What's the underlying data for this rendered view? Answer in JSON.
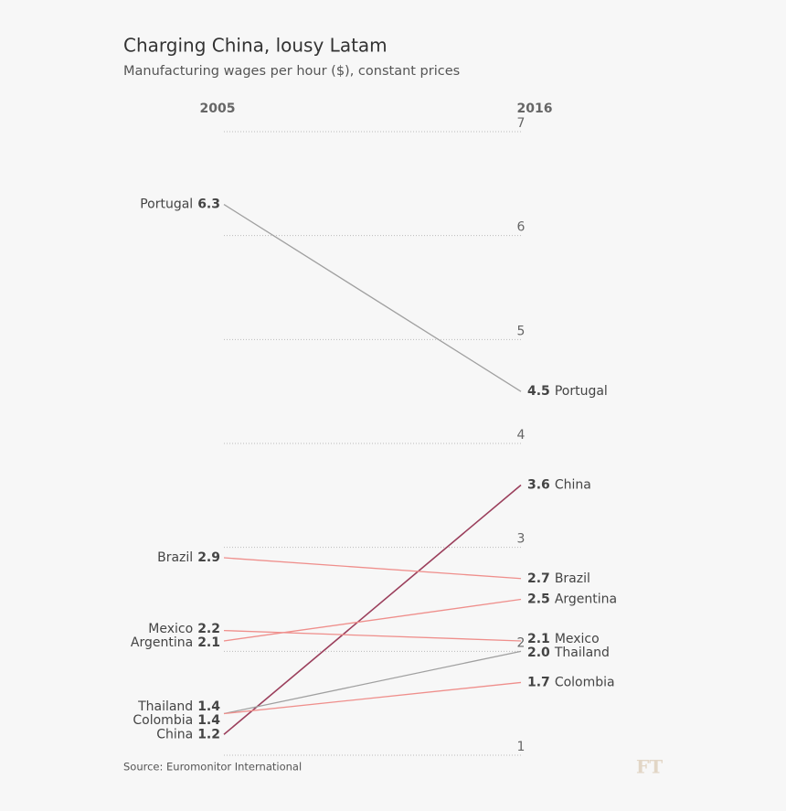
{
  "chart_data": {
    "type": "slope",
    "title": "Charging China, lousy Latam",
    "subtitle": "Manufacturing wages per hour ($), constant prices",
    "categories": [
      "2005",
      "2016"
    ],
    "series": [
      {
        "name": "Portugal",
        "color": "#a0a0a0",
        "values": [
          6.3,
          4.5
        ],
        "value_labels": [
          "6.3",
          "4.5"
        ]
      },
      {
        "name": "China",
        "color": "#9b3f5c",
        "values": [
          1.2,
          3.6
        ],
        "value_labels": [
          "1.2",
          "3.6"
        ]
      },
      {
        "name": "Brazil",
        "color": "#ef8f8c",
        "values": [
          2.9,
          2.7
        ],
        "value_labels": [
          "2.9",
          "2.7"
        ]
      },
      {
        "name": "Argentina",
        "color": "#ef8f8c",
        "values": [
          2.1,
          2.5
        ],
        "value_labels": [
          "2.1",
          "2.5"
        ]
      },
      {
        "name": "Mexico",
        "color": "#ef8f8c",
        "values": [
          2.2,
          2.1
        ],
        "value_labels": [
          "2.2",
          "2.1"
        ]
      },
      {
        "name": "Thailand",
        "color": "#a0a0a0",
        "values": [
          1.4,
          2.0
        ],
        "value_labels": [
          "1.4",
          "2.0"
        ]
      },
      {
        "name": "Colombia",
        "color": "#ef8f8c",
        "values": [
          1.4,
          1.7
        ],
        "value_labels": [
          "1.4",
          "1.7"
        ]
      }
    ],
    "ylim": [
      1,
      7
    ],
    "yticks": [
      1,
      2,
      3,
      4,
      5,
      6,
      7
    ],
    "grid": true,
    "source": "Source: Euromonitor International",
    "logo": "FT"
  }
}
